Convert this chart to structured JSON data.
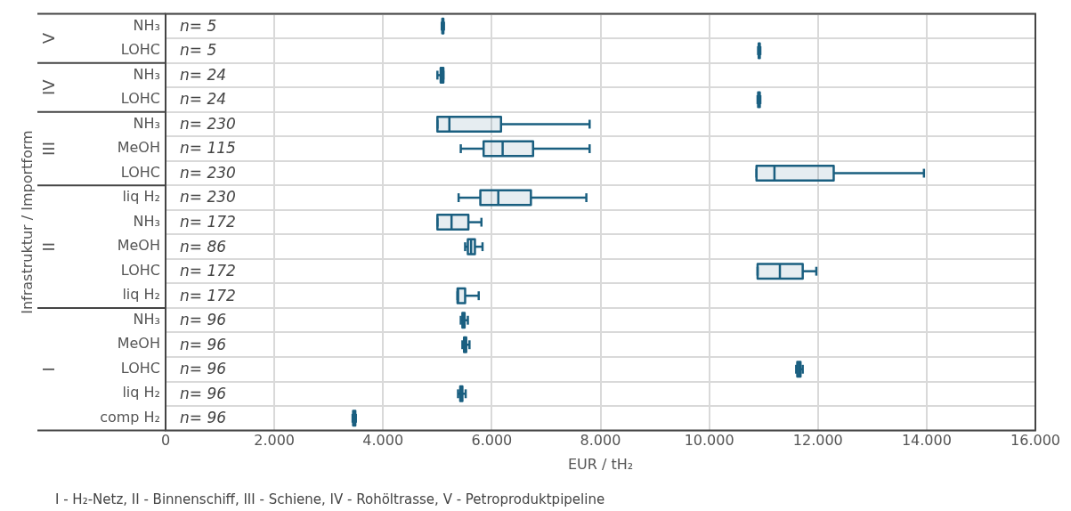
{
  "chart_data": {
    "type": "box",
    "orientation": "horizontal",
    "xlabel": "EUR / tH₂",
    "ylabel": "Infrastruktur / Importform",
    "categories": [
      "NH₃",
      "LOHC",
      "NH₃",
      "LOHC",
      "NH₃",
      "MeOH",
      "LOHC",
      "liq H₂",
      "NH₃",
      "MeOH",
      "LOHC",
      "liq H₂",
      "NH₃",
      "MeOH",
      "LOHC",
      "liq H₂",
      "comp H₂"
    ],
    "xlim": [
      0,
      16000
    ],
    "xticks": [
      0,
      {
        "value": 2000,
        "label": "2.000"
      },
      {
        "value": 4000,
        "label": "4.000"
      },
      {
        "value": 6000,
        "label": "6.000"
      },
      {
        "value": 8000,
        "label": "8.000"
      },
      {
        "value": 10000,
        "label": "10.000"
      },
      {
        "value": 12000,
        "label": "12.000"
      },
      {
        "value": 14000,
        "label": "14.000"
      },
      {
        "value": 16000,
        "label": "16.000"
      }
    ],
    "grid": true,
    "series": [
      {
        "color": "#1a5f80",
        "boxes": [
          {
            "low": 5080,
            "q1": 5090,
            "median": 5100,
            "q3": 5110,
            "high": 5120
          },
          {
            "low": 10900,
            "q1": 10910,
            "median": 10920,
            "q3": 10930,
            "high": 10940
          },
          null,
          null,
          null,
          null,
          null,
          null,
          null,
          null,
          null,
          null,
          null,
          null,
          null,
          null,
          null
        ],
        "value_labels": [
          "n= 5",
          "n= 5",
          null,
          null,
          null,
          null,
          null,
          null,
          null,
          null,
          null,
          null,
          null,
          null,
          null,
          null,
          null
        ]
      },
      {
        "color": "#1a5f80",
        "boxes": [
          null,
          null,
          {
            "low": 5000,
            "q1": 5060,
            "median": 5090,
            "q3": 5110,
            "high": 5110
          },
          {
            "low": 10890,
            "q1": 10900,
            "median": 10920,
            "q3": 10930,
            "high": 10940
          },
          null,
          null,
          null,
          null,
          null,
          null,
          null,
          null,
          null,
          null,
          null,
          null,
          null
        ],
        "value_labels": [
          null,
          null,
          "n= 24",
          "n= 24",
          null,
          null,
          null,
          null,
          null,
          null,
          null,
          null,
          null,
          null,
          null,
          null,
          null
        ]
      },
      {
        "color": "#1a5f80",
        "boxes": [
          null,
          null,
          null,
          null,
          {
            "low": 5000,
            "q1": 5000,
            "median": 5220,
            "q3": 6170,
            "high": 7800
          },
          {
            "low": 5430,
            "q1": 5850,
            "median": 6200,
            "q3": 6760,
            "high": 7800
          },
          {
            "low": 10870,
            "q1": 10870,
            "median": 11200,
            "q3": 12290,
            "high": 13950
          },
          null,
          null,
          null,
          null,
          null,
          null,
          null,
          null,
          null,
          null
        ],
        "value_labels": [
          null,
          null,
          null,
          null,
          "n= 230",
          "n= 115",
          "n= 230",
          null,
          null,
          null,
          null,
          null,
          null,
          null,
          null,
          null,
          null
        ]
      },
      {
        "color": "#1a5f80",
        "boxes": [
          null,
          null,
          null,
          null,
          null,
          null,
          null,
          {
            "low": 5390,
            "q1": 5790,
            "median": 6120,
            "q3": 6720,
            "high": 7740
          },
          {
            "low": 5000,
            "q1": 5000,
            "median": 5260,
            "q3": 5570,
            "high": 5810
          },
          {
            "low": 5510,
            "q1": 5560,
            "median": 5620,
            "q3": 5690,
            "high": 5830
          },
          {
            "low": 10890,
            "q1": 10890,
            "median": 11300,
            "q3": 11720,
            "high": 11970
          },
          {
            "low": 5370,
            "q1": 5370,
            "median": 5380,
            "q3": 5510,
            "high": 5760
          },
          null,
          null,
          null,
          null,
          null
        ],
        "value_labels": [
          null,
          null,
          null,
          null,
          null,
          null,
          null,
          "n= 230",
          "n= 172",
          "n= 86",
          "n= 172",
          "n= 172",
          null,
          null,
          null,
          null,
          null
        ]
      },
      {
        "color": "#1a5f80",
        "boxes": [
          null,
          null,
          null,
          null,
          null,
          null,
          null,
          null,
          null,
          null,
          null,
          null,
          {
            "low": 5430,
            "q1": 5460,
            "median": 5480,
            "q3": 5500,
            "high": 5560
          },
          {
            "low": 5460,
            "q1": 5490,
            "median": 5510,
            "q3": 5530,
            "high": 5590
          },
          {
            "low": 11600,
            "q1": 11620,
            "median": 11650,
            "q3": 11680,
            "high": 11720
          },
          {
            "low": 5380,
            "q1": 5420,
            "median": 5440,
            "q3": 5460,
            "high": 5520
          },
          {
            "low": 3440,
            "q1": 3450,
            "median": 3470,
            "q3": 3490,
            "high": 3500
          }
        ],
        "value_labels": [
          null,
          null,
          null,
          null,
          null,
          null,
          null,
          null,
          null,
          null,
          null,
          null,
          "n= 96",
          "n= 96",
          "n= 96",
          "n= 96",
          "n= 96"
        ]
      }
    ],
    "annotations": [
      "V",
      "IV",
      "III",
      "II",
      "I",
      "I - H₂-Netz, II - Binnenschiff, III - Schiene, IV - Rohöltrasse, V - Petroproduktpipeline"
    ]
  }
}
